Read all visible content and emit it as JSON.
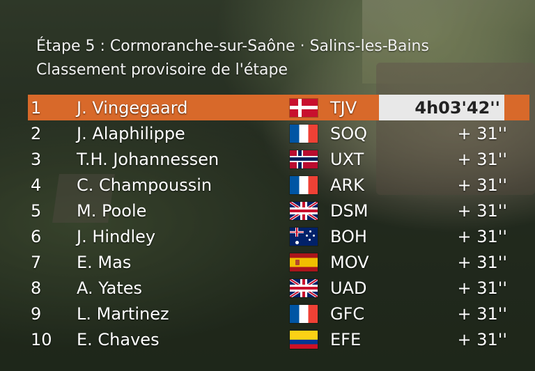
{
  "header": {
    "stage_line": "Étape 5 : Cormoranche-sur-Saône · Salins-les-Bains",
    "classification_line": "Classement provisoire de l'étape"
  },
  "rows": [
    {
      "pos": "1",
      "name": "J. Vingegaard",
      "flag": "denmark-flag-icon",
      "team": "TJV",
      "time": "4h03'42''"
    },
    {
      "pos": "2",
      "name": "J. Alaphilippe",
      "flag": "france-flag-icon",
      "team": "SOQ",
      "time": "+ 31''"
    },
    {
      "pos": "3",
      "name": "T.H. Johannessen",
      "flag": "norway-flag-icon",
      "team": "UXT",
      "time": "+ 31''"
    },
    {
      "pos": "4",
      "name": "C. Champoussin",
      "flag": "france-flag-icon",
      "team": "ARK",
      "time": "+ 31''"
    },
    {
      "pos": "5",
      "name": "M. Poole",
      "flag": "uk-flag-icon",
      "team": "DSM",
      "time": "+ 31''"
    },
    {
      "pos": "6",
      "name": "J. Hindley",
      "flag": "australia-flag-icon",
      "team": "BOH",
      "time": "+ 31''"
    },
    {
      "pos": "7",
      "name": "E. Mas",
      "flag": "spain-flag-icon",
      "team": "MOV",
      "time": "+ 31''"
    },
    {
      "pos": "8",
      "name": "A. Yates",
      "flag": "uk-flag-icon",
      "team": "UAD",
      "time": "+ 31''"
    },
    {
      "pos": "9",
      "name": "L. Martinez",
      "flag": "france-flag-icon",
      "team": "GFC",
      "time": "+ 31''"
    },
    {
      "pos": "10",
      "name": "E. Chaves",
      "flag": "colombia-flag-icon",
      "team": "EFE",
      "time": "+ 31''"
    }
  ],
  "colors": {
    "leader_row": "#d8692a",
    "leader_time_box": "#e8e8e8",
    "text": "#ffffff"
  }
}
